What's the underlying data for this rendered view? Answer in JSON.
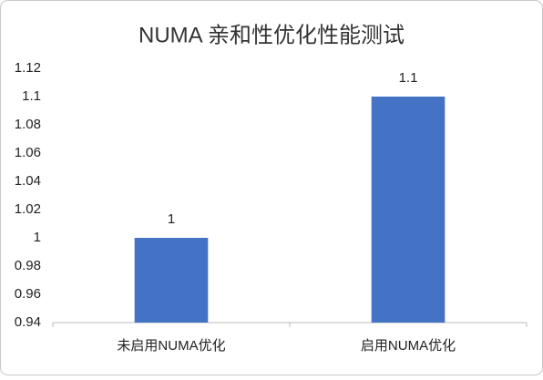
{
  "chart_data": {
    "type": "bar",
    "title": "NUMA 亲和性优化性能测试",
    "categories": [
      "未启用NUMA优化",
      "启用NUMA优化"
    ],
    "values": [
      1,
      1.1
    ],
    "color": "#4472c4",
    "ylim": [
      0.94,
      1.12
    ],
    "yticks": [
      0.94,
      0.96,
      0.98,
      1,
      1.02,
      1.04,
      1.06,
      1.08,
      1.1,
      1.12
    ],
    "grid": false
  }
}
